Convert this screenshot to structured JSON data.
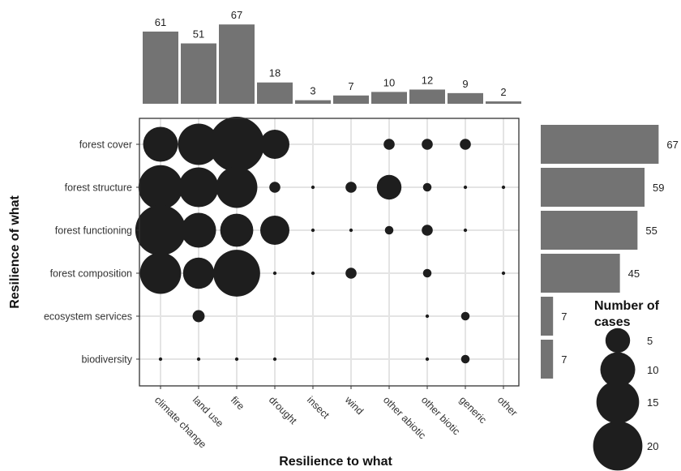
{
  "chart_data": {
    "type": "scatter",
    "xlabel": "Resilience to what",
    "ylabel": "Resilience of what",
    "x_categories": [
      "climate change",
      "land use",
      "fire",
      "drought",
      "insect",
      "wind",
      "other abiotic",
      "other biotic",
      "generic",
      "other"
    ],
    "y_categories": [
      "forest cover",
      "forest structure",
      "forest functioning",
      "forest composition",
      "ecosystem services",
      "biodiversity"
    ],
    "grid": true,
    "bubbles": [
      {
        "y": "forest cover",
        "x": "climate change",
        "size": 10
      },
      {
        "y": "forest cover",
        "x": "land use",
        "size": 14
      },
      {
        "y": "forest cover",
        "x": "fire",
        "size": 25
      },
      {
        "y": "forest cover",
        "x": "drought",
        "size": 7
      },
      {
        "y": "forest cover",
        "x": "other abiotic",
        "size": 1
      },
      {
        "y": "forest cover",
        "x": "other biotic",
        "size": 1
      },
      {
        "y": "forest cover",
        "x": "generic",
        "size": 1
      },
      {
        "y": "forest structure",
        "x": "climate change",
        "size": 16
      },
      {
        "y": "forest structure",
        "x": "land use",
        "size": 13
      },
      {
        "y": "forest structure",
        "x": "fire",
        "size": 14
      },
      {
        "y": "forest structure",
        "x": "drought",
        "size": 1
      },
      {
        "y": "forest structure",
        "x": "insect",
        "size": 0.1
      },
      {
        "y": "forest structure",
        "x": "wind",
        "size": 1
      },
      {
        "y": "forest structure",
        "x": "other abiotic",
        "size": 5
      },
      {
        "y": "forest structure",
        "x": "other biotic",
        "size": 0.6
      },
      {
        "y": "forest structure",
        "x": "generic",
        "size": 0.1
      },
      {
        "y": "forest structure",
        "x": "other",
        "size": 0.1
      },
      {
        "y": "forest functioning",
        "x": "climate change",
        "size": 21
      },
      {
        "y": "forest functioning",
        "x": "land use",
        "size": 10
      },
      {
        "y": "forest functioning",
        "x": "fire",
        "size": 9
      },
      {
        "y": "forest functioning",
        "x": "drought",
        "size": 7
      },
      {
        "y": "forest functioning",
        "x": "insect",
        "size": 0.1
      },
      {
        "y": "forest functioning",
        "x": "wind",
        "size": 0.1
      },
      {
        "y": "forest functioning",
        "x": "other abiotic",
        "size": 0.6
      },
      {
        "y": "forest functioning",
        "x": "other biotic",
        "size": 1
      },
      {
        "y": "forest functioning",
        "x": "generic",
        "size": 0.1
      },
      {
        "y": "forest composition",
        "x": "climate change",
        "size": 14
      },
      {
        "y": "forest composition",
        "x": "land use",
        "size": 8
      },
      {
        "y": "forest composition",
        "x": "fire",
        "size": 18
      },
      {
        "y": "forest composition",
        "x": "drought",
        "size": 0.1
      },
      {
        "y": "forest composition",
        "x": "insect",
        "size": 0.1
      },
      {
        "y": "forest composition",
        "x": "wind",
        "size": 1
      },
      {
        "y": "forest composition",
        "x": "other biotic",
        "size": 0.6
      },
      {
        "y": "forest composition",
        "x": "other",
        "size": 0.1
      },
      {
        "y": "ecosystem services",
        "x": "land use",
        "size": 1.2
      },
      {
        "y": "ecosystem services",
        "x": "other biotic",
        "size": 0.1
      },
      {
        "y": "ecosystem services",
        "x": "generic",
        "size": 0.6
      },
      {
        "y": "biodiversity",
        "x": "climate change",
        "size": 0.1
      },
      {
        "y": "biodiversity",
        "x": "land use",
        "size": 0.1
      },
      {
        "y": "biodiversity",
        "x": "fire",
        "size": 0.1
      },
      {
        "y": "biodiversity",
        "x": "drought",
        "size": 0.1
      },
      {
        "y": "biodiversity",
        "x": "other biotic",
        "size": 0.1
      },
      {
        "y": "biodiversity",
        "x": "generic",
        "size": 0.6
      }
    ],
    "top_marginal": {
      "type": "bar",
      "values": [
        61,
        51,
        67,
        18,
        3,
        7,
        10,
        12,
        9,
        2
      ]
    },
    "right_marginal": {
      "type": "bar",
      "values": [
        67,
        59,
        55,
        45,
        7,
        7
      ]
    },
    "legend": {
      "title_line1": "Number of",
      "title_line2": "cases",
      "sizes": [
        5,
        10,
        15,
        20
      ],
      "placement": "right"
    },
    "colors": {
      "bubble": "#1e1e1e",
      "bar": "#737373",
      "grid": "#e4e4e4",
      "panel_border": "#333333"
    }
  }
}
